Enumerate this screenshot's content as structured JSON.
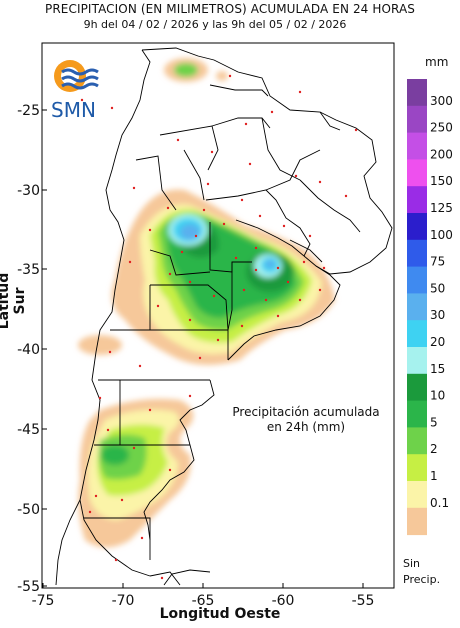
{
  "header": {
    "title": "PRECIPITACION (EN MILIMETROS) ACUMULADA EN 24 HORAS",
    "period": "9h del 04 / 02 / 2026  y las 9h del 05 / 02 / 2026"
  },
  "logo": {
    "text": "SMN",
    "icon": "smn-logo-icon"
  },
  "axes": {
    "xlabel": "Longitud Oeste",
    "ylabel": "Latitud Sur",
    "xticks": [
      "-75",
      "-70",
      "-65",
      "-60",
      "-55"
    ],
    "yticks": [
      "-25",
      "-30",
      "-35",
      "-40",
      "-45",
      "-50",
      "-55"
    ],
    "xlim": [
      -75,
      -53
    ],
    "ylim": [
      -55,
      -21
    ]
  },
  "annotation": {
    "line1": "Precipitación acumulada",
    "line2": "en 24h (mm)"
  },
  "legend": {
    "unit": "mm",
    "levels": [
      {
        "label": "300",
        "color": "#7a3ea0"
      },
      {
        "label": "250",
        "color": "#9a46c4"
      },
      {
        "label": "200",
        "color": "#c44fe6"
      },
      {
        "label": "150",
        "color": "#ee50ee"
      },
      {
        "label": "125",
        "color": "#9a2ce6"
      },
      {
        "label": "100",
        "color": "#2b1ecc"
      },
      {
        "label": "75",
        "color": "#2f5bea"
      },
      {
        "label": "50",
        "color": "#3f8af0"
      },
      {
        "label": "30",
        "color": "#5ab0ee"
      },
      {
        "label": "20",
        "color": "#3ed2f2"
      },
      {
        "label": "15",
        "color": "#a6f2ee"
      },
      {
        "label": "10",
        "color": "#1b9a3c"
      },
      {
        "label": "5",
        "color": "#2bb54a"
      },
      {
        "label": "2",
        "color": "#6ed24a"
      },
      {
        "label": "1",
        "color": "#c6ef44"
      },
      {
        "label": "0.1",
        "color": "#fbf4a8"
      },
      {
        "label": "",
        "color": "#f6c89a"
      }
    ],
    "nodata_line1": "Sin",
    "nodata_line2": "Precip."
  }
}
